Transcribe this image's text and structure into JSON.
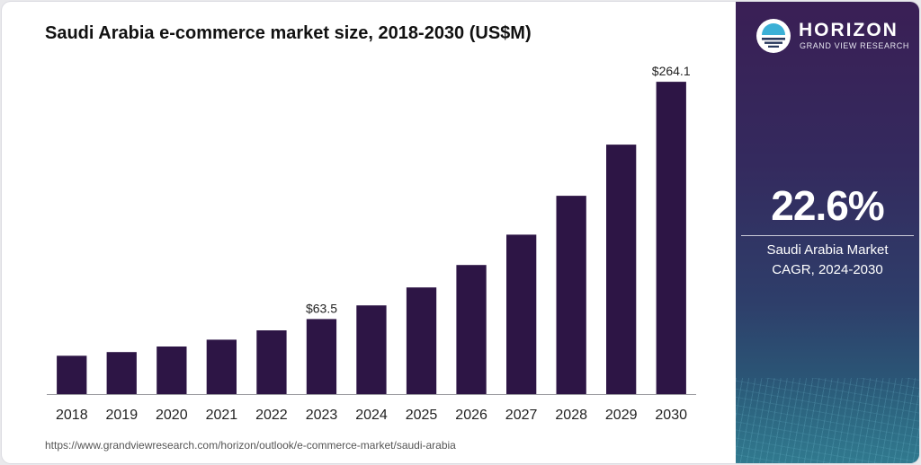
{
  "chart_data": {
    "type": "bar",
    "title": "Saudi Arabia e-commerce market size, 2018-2030 (US$M)",
    "categories": [
      "2018",
      "2019",
      "2020",
      "2021",
      "2022",
      "2023",
      "2024",
      "2025",
      "2026",
      "2027",
      "2028",
      "2029",
      "2030"
    ],
    "values": [
      32.4,
      35.5,
      40.2,
      46.0,
      53.9,
      63.5,
      75.0,
      90.2,
      109.2,
      134.8,
      167.7,
      211.0,
      264.1
    ],
    "data_labels": [
      {
        "index": 5,
        "text": "$63.5"
      },
      {
        "index": 12,
        "text": "$264.1"
      }
    ],
    "xlabel": "",
    "ylabel": "",
    "ylim": [
      0,
      290
    ],
    "grid": false,
    "bar_color": "#2d1545"
  },
  "source_url": "https://www.grandviewresearch.com/horizon/outlook/e-commerce-market/saudi-arabia",
  "sidebar": {
    "brand_name": "HORIZON",
    "brand_tagline": "GRAND VIEW RESEARCH",
    "logo_icon": "horizon-sun-logo-icon",
    "cagr_value": "22.6%",
    "cagr_label_line1": "Saudi Arabia Market",
    "cagr_label_line2": "CAGR, 2024-2030"
  }
}
